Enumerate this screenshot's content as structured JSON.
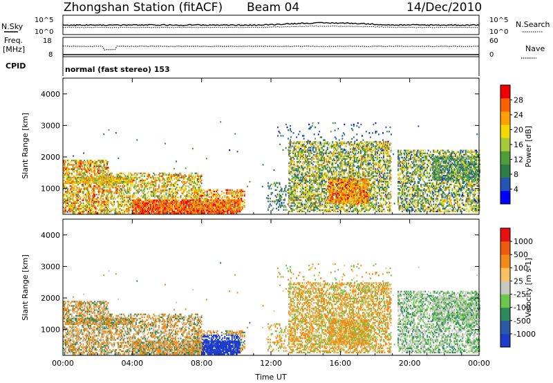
{
  "header": {
    "station": "Zhongshan Station (fitACF)",
    "beam": "Beam 04",
    "date": "14/Dec/2010"
  },
  "noise_panel": {
    "left_label": "N.Sky",
    "right_label": "N.Search",
    "left_ticks": [
      "10^5",
      "10^0"
    ],
    "right_ticks": [
      "10^5",
      "10^0"
    ]
  },
  "freq_panel": {
    "left_label_1": "Freq.",
    "left_label_2": "[MHz]",
    "right_label": "Nave",
    "left_ticks": [
      "18",
      "8"
    ],
    "right_ticks": [
      "60",
      "0"
    ]
  },
  "cpid": {
    "label": "CPID",
    "value": "normal (fast stereo) 153"
  },
  "chart_data": [
    {
      "type": "heatmap",
      "title": "",
      "xlabel": "",
      "ylabel": "Slant Range [km]",
      "colorbar_label": "Power [dB]",
      "colorbar_ticks": [
        "28",
        "24",
        "20",
        "16",
        "12",
        "8",
        "4"
      ],
      "colorbar_colors": [
        "#0000ff",
        "#2454b4",
        "#2f7c46",
        "#4f9c3a",
        "#a8c83c",
        "#f4d800",
        "#ffa000",
        "#ff6000",
        "#f00000"
      ],
      "colorbar_range": [
        0,
        32
      ],
      "ylim": [
        180,
        4500
      ],
      "y_ticks": [
        "4000",
        "3000",
        "2000",
        "1000"
      ],
      "y_tick_values": [
        4000,
        3000,
        2000,
        1000
      ],
      "xlim_hours": [
        0,
        24
      ]
    },
    {
      "type": "heatmap",
      "title": "",
      "xlabel": "Time UT",
      "ylabel": "Slant Range [km]",
      "colorbar_label": "Velocity [m s-1]",
      "colorbar_ticks": [
        "1000",
        "500",
        "100",
        "25",
        "-25",
        "-100",
        "-500",
        "-1000"
      ],
      "colorbar_colors": [
        "#1e3cc8",
        "#2a5aa8",
        "#2e8a5a",
        "#6cc84a",
        "#c8c8c0",
        "#f8c060",
        "#f08a18",
        "#f05a10",
        "#e81010"
      ],
      "ylim": [
        180,
        4500
      ],
      "y_ticks": [
        "4000",
        "3000",
        "2000",
        "1000"
      ],
      "y_tick_values": [
        4000,
        3000,
        2000,
        1000
      ],
      "x_ticks": [
        "00:00",
        "04:00",
        "08:00",
        "12:00",
        "16:00",
        "20:00",
        "00:00"
      ],
      "x_tick_hours": [
        0,
        4,
        8,
        12,
        16,
        20,
        24
      ]
    }
  ]
}
